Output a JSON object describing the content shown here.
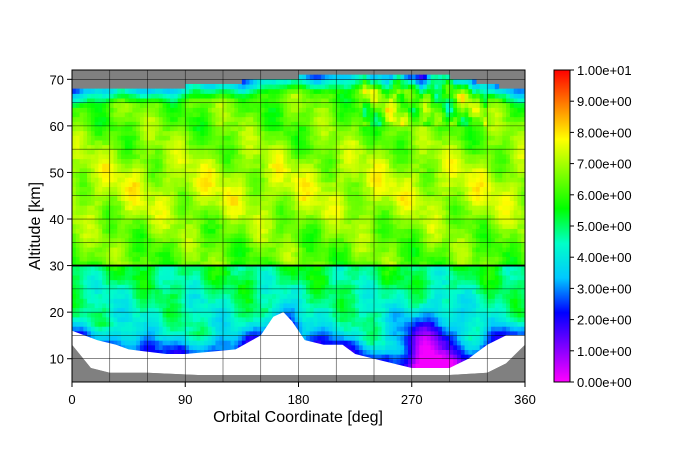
{
  "chart_data": {
    "type": "heatmap",
    "title": "",
    "xlabel": "Orbital Coordinate [deg]",
    "ylabel": "Altitude [km]",
    "xlim": [
      0,
      360
    ],
    "ylim": [
      5,
      72
    ],
    "x_ticks": [
      "0",
      "90",
      "180",
      "270",
      "360"
    ],
    "y_ticks": [
      "10",
      "20",
      "30",
      "40",
      "50",
      "60",
      "70"
    ],
    "grid_x_step": 30,
    "grid_y_step": 5,
    "grid": true,
    "reference_line_altitude": 30,
    "missing_data_color": "#808080",
    "no_data_color": "#ffffff",
    "colorbar": {
      "min": 0,
      "max": 10,
      "colormap": [
        "#ff00ff",
        "#8000ff",
        "#0000ff",
        "#00c8ff",
        "#00ffc8",
        "#00ff00",
        "#80ff00",
        "#ffff00",
        "#ff8000",
        "#ff0000"
      ],
      "labels": [
        "0.00e+00",
        "1.00e+00",
        "2.00e+00",
        "3.00e+00",
        "4.00e+00",
        "5.00e+00",
        "6.00e+00",
        "7.00e+00",
        "8.00e+00",
        "9.00e+00",
        "1.00e+01"
      ]
    },
    "data_bottom_profile": [
      [
        0,
        16
      ],
      [
        10,
        15
      ],
      [
        20,
        14
      ],
      [
        35,
        13
      ],
      [
        45,
        12
      ],
      [
        60,
        11.5
      ],
      [
        75,
        11
      ],
      [
        90,
        11
      ],
      [
        110,
        11.5
      ],
      [
        130,
        12
      ],
      [
        150,
        15
      ],
      [
        160,
        19
      ],
      [
        168,
        20
      ],
      [
        175,
        18
      ],
      [
        185,
        14
      ],
      [
        200,
        13
      ],
      [
        215,
        13
      ],
      [
        225,
        11
      ],
      [
        240,
        10
      ],
      [
        255,
        9
      ],
      [
        270,
        8
      ],
      [
        285,
        8
      ],
      [
        300,
        8
      ],
      [
        315,
        10
      ],
      [
        330,
        13
      ],
      [
        345,
        15
      ],
      [
        360,
        15
      ]
    ],
    "gray_bottom_profile": [
      [
        0,
        13
      ],
      [
        15,
        8
      ],
      [
        30,
        7
      ],
      [
        60,
        7
      ],
      [
        100,
        6.5
      ],
      [
        180,
        6.5
      ],
      [
        230,
        6.5
      ],
      [
        260,
        6.5
      ],
      [
        300,
        6.5
      ],
      [
        330,
        7
      ],
      [
        345,
        9
      ],
      [
        360,
        13
      ]
    ],
    "data_top_profile": [
      [
        0,
        67
      ],
      [
        90,
        68
      ],
      [
        180,
        70
      ],
      [
        240,
        70.5
      ],
      [
        300,
        70
      ],
      [
        360,
        67
      ]
    ],
    "field_description_regions": [
      {
        "x_range": [
          0,
          360
        ],
        "alt_range": [
          30,
          70
        ],
        "typical_value": 6.5
      },
      {
        "x_range": [
          0,
          360
        ],
        "alt_range": [
          15,
          30
        ],
        "typical_value": 4.5
      },
      {
        "x_range": [
          250,
          320
        ],
        "alt_range": [
          8,
          25
        ],
        "typical_value": 2.0
      }
    ]
  }
}
